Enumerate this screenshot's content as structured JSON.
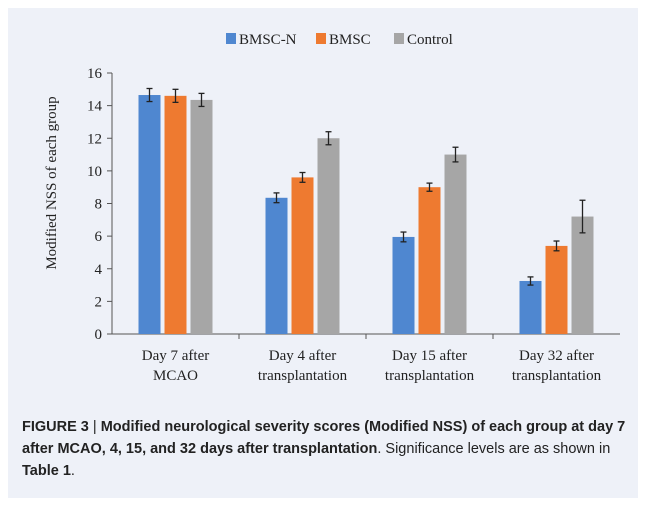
{
  "chart_data": {
    "type": "bar",
    "ylabel": "Modified NSS of each group",
    "xlabel": "",
    "ylim": [
      0,
      16
    ],
    "yticks": [
      0,
      2,
      4,
      6,
      8,
      10,
      12,
      14,
      16
    ],
    "grid": false,
    "legend_position": "top-center",
    "categories": [
      [
        "Day 7 after",
        "MCAO"
      ],
      [
        "Day 4 after",
        "transplantation"
      ],
      [
        "Day 15 after",
        "transplantation"
      ],
      [
        "Day 32 after",
        "transplantation"
      ]
    ],
    "series": [
      {
        "name": "BMSC-N",
        "color": "#4f87d0",
        "values": [
          14.65,
          8.35,
          5.95,
          3.25
        ],
        "errors": [
          0.4,
          0.3,
          0.3,
          0.25
        ]
      },
      {
        "name": "BMSC",
        "color": "#ee7a30",
        "values": [
          14.6,
          9.6,
          9.0,
          5.4
        ],
        "errors": [
          0.4,
          0.3,
          0.25,
          0.3
        ]
      },
      {
        "name": "Control",
        "color": "#a6a6a6",
        "values": [
          14.35,
          12.0,
          11.0,
          7.2
        ],
        "errors": [
          0.4,
          0.4,
          0.45,
          1.0
        ]
      }
    ]
  },
  "caption": {
    "label": "FIGURE 3",
    "separator": " | ",
    "title": "Modified neurological severity scores (Modified NSS) of each group at day 7 after MCAO, 4, 15, and 32 days after transplantation",
    "rest": ". Significance levels are as shown in ",
    "table_ref": "Table 1",
    "end": "."
  }
}
